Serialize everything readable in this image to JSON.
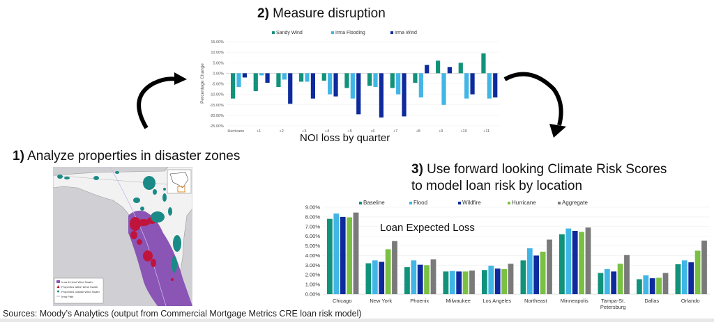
{
  "step1": {
    "number": "1)",
    "text": " Analyze properties in disaster zones"
  },
  "step2": {
    "number": "2)",
    "text": " Measure disruption"
  },
  "step3": {
    "number": "3)",
    "line1": " Use forward looking Climate Risk Scores",
    "line2": "to model loan risk by location"
  },
  "map": {
    "legend": [
      {
        "label": "Irma 64 knot Wind Swath",
        "color": "#8a55b5",
        "symbol": "square"
      },
      {
        "label": "Properties within Wind Swath",
        "color": "#c0143c",
        "symbol": "triangle"
      },
      {
        "label": "Properties outside Wind Swath",
        "color": "#1a8a86",
        "symbol": "dot"
      },
      {
        "label": "Irma Path",
        "color": "#b9a6e0",
        "symbol": "line"
      }
    ]
  },
  "sources": "Sources: Moody’s Analytics (output from Commercial Mortgage Metrics CRE loan risk model)",
  "colors": {
    "sandy_wind": "#11927a",
    "irma_flooding": "#41b6e6",
    "irma_wind": "#0f2a9c",
    "baseline": "#11927a",
    "flood": "#41b6e6",
    "wildfire": "#0f2a9c",
    "hurricane": "#7ac143",
    "aggregate": "#7a7a7a"
  },
  "chart_data": [
    {
      "type": "bar",
      "title": "Measure disruption",
      "xlabel": "NOI loss by quarter",
      "ylabel": "Percentage Change",
      "ylim": [
        -25,
        15
      ],
      "yticks": [
        "15.00%",
        "10.00%",
        "5.00%",
        "0.00%",
        "-5.00%",
        "-10.00%",
        "-15.00%",
        "-20.00%",
        "-25.00%"
      ],
      "categories": [
        "Hurricane",
        "+1",
        "+2",
        "+3",
        "+4",
        "+5",
        "+6",
        "+7",
        "+8",
        "+9",
        "+10",
        "+11"
      ],
      "legend_position": "top",
      "series": [
        {
          "name": "Sandy Wind",
          "values": [
            -12,
            -8.5,
            -6.5,
            -4,
            -3.5,
            -7,
            -6,
            -7,
            -4.5,
            6,
            5,
            9.5
          ]
        },
        {
          "name": "Irma Flooding",
          "values": [
            -6.5,
            -1,
            -3,
            -4,
            -10,
            -12,
            -6.5,
            -10,
            -11.5,
            -15,
            -12,
            -12
          ]
        },
        {
          "name": "Irma Wind",
          "values": [
            -2,
            -4.5,
            -14.5,
            -12,
            -11,
            -19.5,
            -21,
            -20.5,
            4,
            3,
            -10,
            -11.5
          ]
        }
      ]
    },
    {
      "type": "bar",
      "title": "Loan Expected Loss",
      "xlabel": "",
      "ylabel": "",
      "ylim": [
        0,
        9
      ],
      "yticks": [
        "9.00%",
        "8.00%",
        "7.00%",
        "6.00%",
        "5.00%",
        "4.00%",
        "3.00%",
        "2.00%",
        "1.00%",
        "0.00%"
      ],
      "categories": [
        "Chicago",
        "New York",
        "Phoenix",
        "Milwaukee",
        "Los Angeles",
        "Northeast",
        "Minneapolis",
        "Tampa-St. Petersburg",
        "Dallas",
        "Orlando"
      ],
      "legend_position": "top",
      "series": [
        {
          "name": "Baseline",
          "values": [
            7.8,
            3.2,
            2.8,
            2.35,
            2.5,
            3.5,
            6.2,
            2.2,
            1.55,
            3.1
          ]
        },
        {
          "name": "Flood",
          "values": [
            8.35,
            3.5,
            3.5,
            2.4,
            2.95,
            4.75,
            6.8,
            2.6,
            1.95,
            3.5
          ]
        },
        {
          "name": "Wildfire",
          "values": [
            8.0,
            3.35,
            3.05,
            2.35,
            2.65,
            4.0,
            6.55,
            2.35,
            1.65,
            3.3
          ]
        },
        {
          "name": "Hurricane",
          "values": [
            7.95,
            4.65,
            3.0,
            2.35,
            2.6,
            4.4,
            6.45,
            3.15,
            1.7,
            4.5
          ]
        },
        {
          "name": "Aggregate",
          "values": [
            8.45,
            5.5,
            3.6,
            2.45,
            3.15,
            5.65,
            6.9,
            4.05,
            2.2,
            5.55
          ]
        }
      ]
    }
  ]
}
